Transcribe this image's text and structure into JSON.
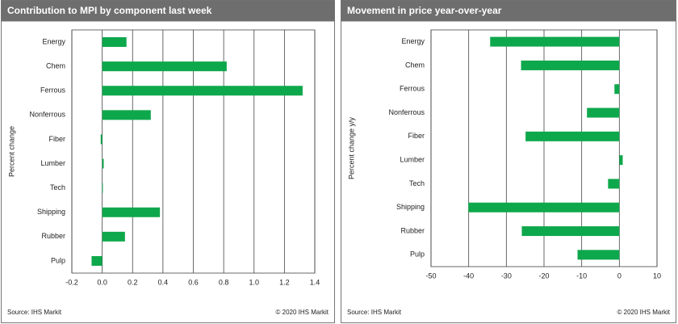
{
  "chart_data": [
    {
      "type": "bar",
      "orientation": "horizontal",
      "title": "Contribution  to MPI by component last week",
      "axis_label": "Percent change",
      "categories": [
        "Energy",
        "Chem",
        "Ferrous",
        "Nonferrous",
        "Fiber",
        "Lumber",
        "Tech",
        "Shipping",
        "Rubber",
        "Pulp"
      ],
      "values": [
        0.16,
        0.82,
        1.32,
        0.32,
        -0.01,
        0.01,
        0,
        0.38,
        0.15,
        -0.07
      ],
      "color": "#0ea84c",
      "xlim": [
        -0.2,
        1.4
      ],
      "xticks": [
        -0.2,
        {
          "value": 0,
          "label": "0.0"
        },
        0.2,
        0.4,
        0.6,
        0.8,
        {
          "value": 1,
          "label": "1.0"
        },
        1.2,
        1.4
      ],
      "grid": true,
      "source": "Source:  IHS Markit",
      "copyright": "© 2020  IHS Markit"
    },
    {
      "type": "bar",
      "orientation": "horizontal",
      "title": "Movement in price year-over-year",
      "axis_label": "Percent change y/y",
      "categories": [
        "Energy",
        "Chem",
        "Ferrous",
        "Nonferrous",
        "Fiber",
        "Lumber",
        "Tech",
        "Shipping",
        "Rubber",
        "Pulp"
      ],
      "values": [
        -34.3,
        -26.1,
        -1.3,
        -8.6,
        -24.9,
        0.9,
        -3,
        -40.1,
        -25.9,
        -11.1
      ],
      "color": "#0ea84c",
      "xlim": [
        -50,
        10
      ],
      "xticks": [
        -50,
        -40,
        -30,
        -20,
        -10,
        0,
        10
      ],
      "grid": true,
      "source": "Source:  IHS Markit",
      "copyright": "© 2020  IHS Markit"
    }
  ]
}
